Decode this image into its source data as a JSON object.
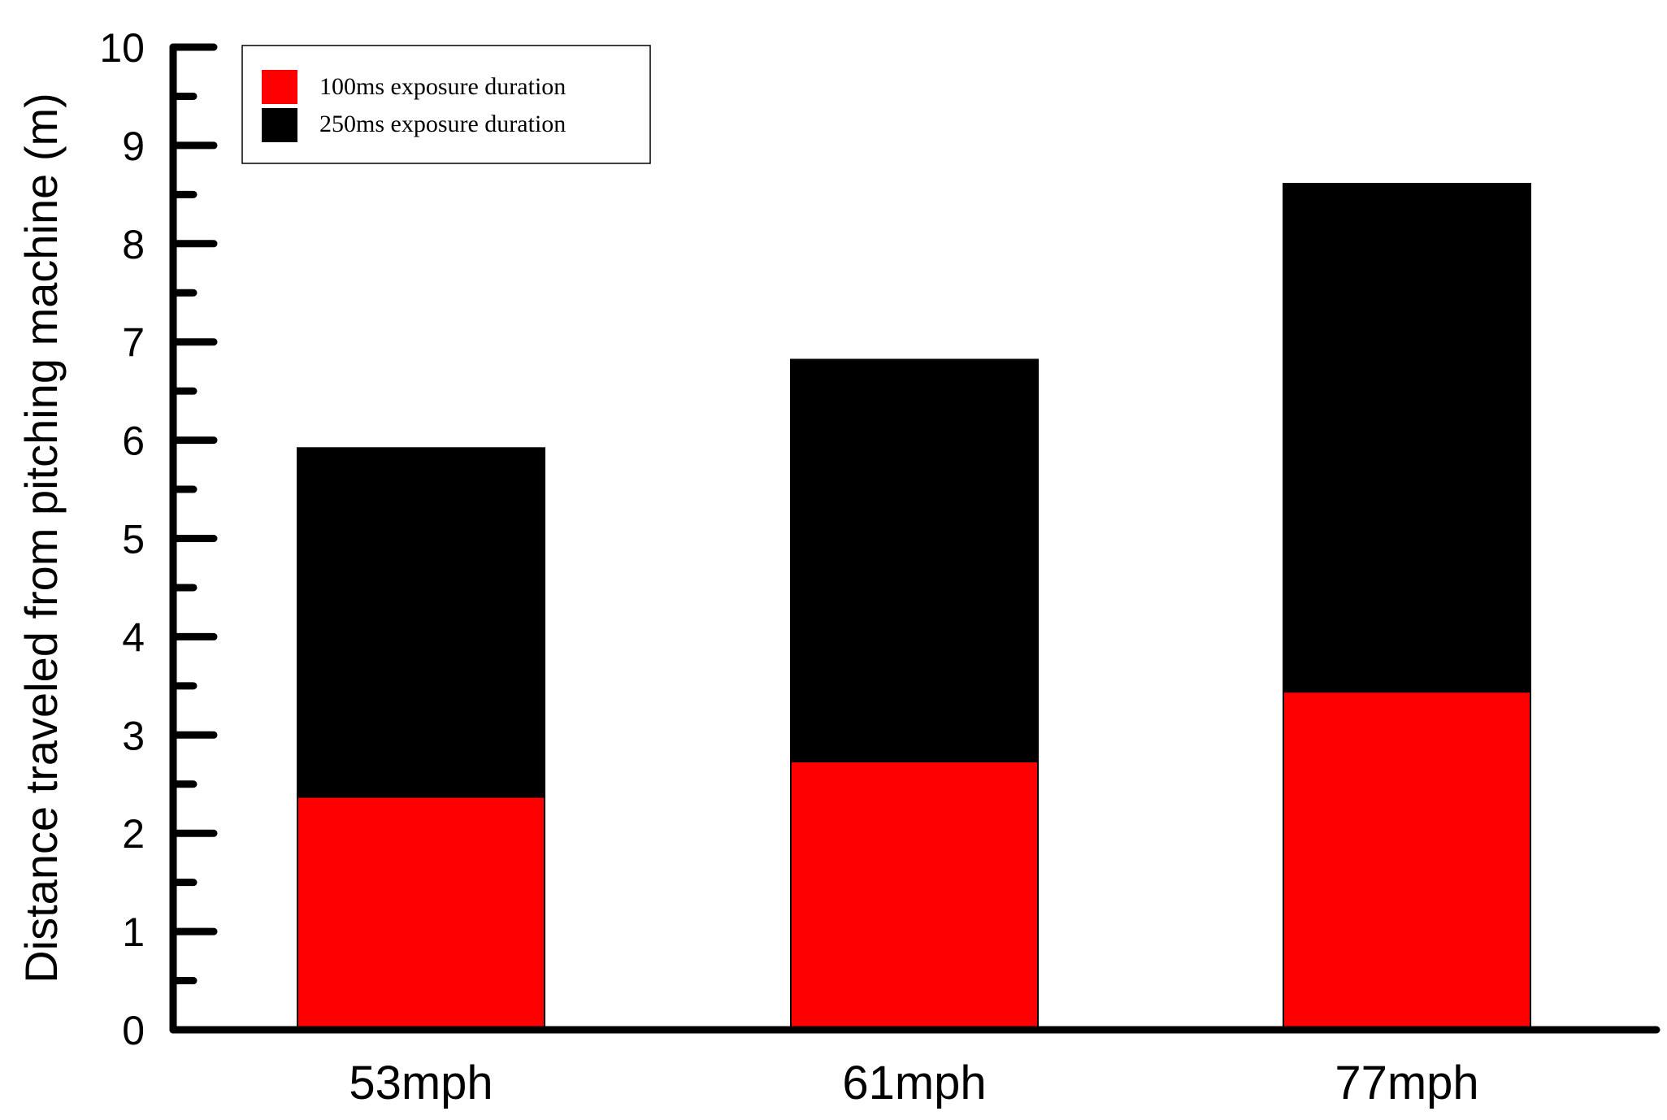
{
  "chart_data": {
    "type": "bar",
    "stacked": true,
    "categories": [
      "53mph",
      "61mph",
      "77mph"
    ],
    "series": [
      {
        "name": "100ms exposure duration",
        "values": [
          2.37,
          2.73,
          3.44
        ],
        "color": "#ff0000"
      },
      {
        "name": "250ms exposure duration",
        "values": [
          3.55,
          4.09,
          5.17
        ],
        "color": "#000000"
      }
    ],
    "ylabel": "Distance traveled from pitching machine (m)",
    "xlabel": "",
    "ylim": [
      0,
      10
    ],
    "yticks": [
      "0",
      "1",
      "2",
      "3",
      "4",
      "5",
      "6",
      "7",
      "8",
      "9",
      "10"
    ],
    "grid": false,
    "legend_position": "top-left"
  }
}
